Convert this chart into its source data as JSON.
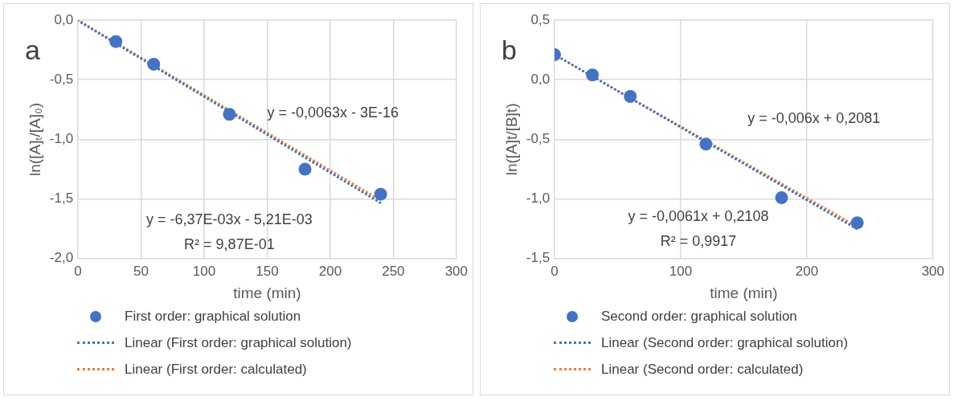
{
  "chart_data": [
    {
      "type": "scatter",
      "title": "a",
      "xlabel": "time (min)",
      "ylabel": "ln([A]ₜ/[A]₀)",
      "xlim": [
        0,
        300
      ],
      "xticks": [
        0,
        50,
        100,
        150,
        200,
        250,
        300
      ],
      "ylim": [
        -2,
        0
      ],
      "yticks": [
        {
          "value": -2,
          "label": "-2,0"
        },
        {
          "value": -1.5,
          "label": "-1,5"
        },
        {
          "value": -1,
          "label": "-1,0"
        },
        {
          "value": -0.5,
          "label": "-0,5"
        },
        {
          "value": 0,
          "label": "0,0"
        }
      ],
      "grid": true,
      "legend": "bottom",
      "series": [
        {
          "name": "First order: graphical solution",
          "type": "scatter",
          "marker": "circle",
          "color": "#4472c4",
          "x": [
            30,
            60,
            120,
            180,
            240
          ],
          "values": [
            -0.18,
            -0.37,
            -0.79,
            -1.25,
            -1.46
          ]
        },
        {
          "name": "Linear (First order: graphical solution)",
          "type": "line",
          "marker": "none",
          "line_style": "dotted",
          "color": "#4472c4",
          "x": [
            0,
            240
          ],
          "values": [
            -0.005,
            -1.534
          ]
        },
        {
          "name": "Linear (First order: calculated)",
          "type": "line",
          "marker": "none",
          "line_style": "dotted",
          "color": "#ed7d31",
          "x": [
            0,
            240
          ],
          "values": [
            0,
            -1.512
          ]
        }
      ],
      "annotations": [
        "y = -0,0063x - 3E-16",
        "y = -6,37E-03x - 5,21E-03",
        "R² = 9,87E-01"
      ]
    },
    {
      "type": "scatter",
      "title": "b",
      "xlabel": "time (min)",
      "ylabel": "ln([A]t/[B]t)",
      "xlim": [
        0,
        300
      ],
      "xticks": [
        0,
        100,
        200,
        300
      ],
      "ylim": [
        -1.5,
        0.5
      ],
      "yticks": [
        {
          "value": -1.5,
          "label": "-1,5"
        },
        {
          "value": -1,
          "label": "-1,0"
        },
        {
          "value": -0.5,
          "label": "-0,5"
        },
        {
          "value": 0,
          "label": "0,0"
        },
        {
          "value": 0.5,
          "label": "0,5"
        }
      ],
      "grid": true,
      "legend": "bottom",
      "series": [
        {
          "name": "Second order: graphical solution",
          "type": "scatter",
          "marker": "circle",
          "color": "#4472c4",
          "x": [
            0,
            30,
            60,
            120,
            180,
            240
          ],
          "values": [
            0.21,
            0.04,
            -0.14,
            -0.54,
            -0.99,
            -1.2
          ]
        },
        {
          "name": "Linear (Second order: graphical solution)",
          "type": "line",
          "marker": "none",
          "line_style": "dotted",
          "color": "#4472c4",
          "x": [
            0,
            240
          ],
          "values": [
            0.211,
            -1.253
          ]
        },
        {
          "name": "Linear (Second order: calculated)",
          "type": "line",
          "marker": "none",
          "line_style": "dotted",
          "color": "#ed7d31",
          "x": [
            0,
            240
          ],
          "values": [
            0.208,
            -1.232
          ]
        }
      ],
      "annotations": [
        "y = -0,006x + 0,2081",
        "y = -0,0061x + 0,2108",
        "R² = 0,9917"
      ]
    }
  ]
}
